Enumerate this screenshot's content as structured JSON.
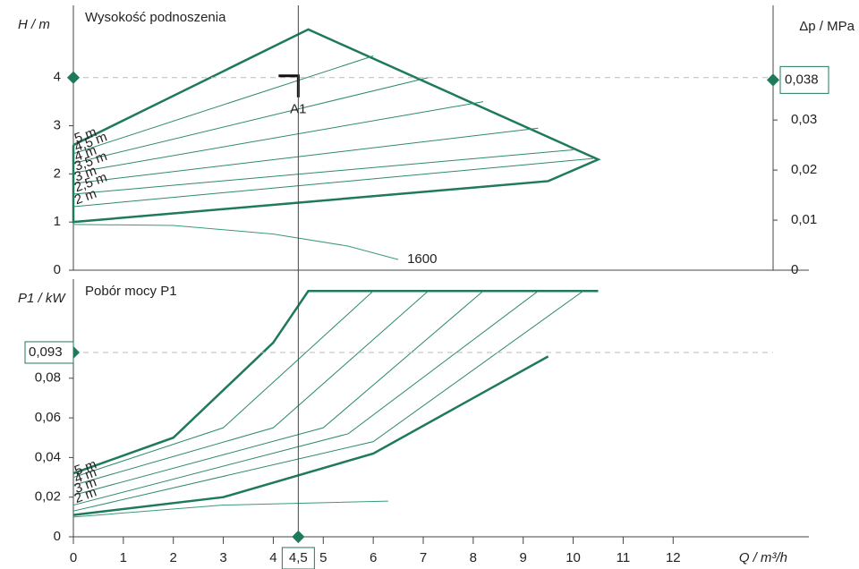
{
  "chart_data": [
    {
      "type": "line",
      "title": "Wysokość podnoszenia",
      "ylabel": "H / m",
      "y2label": "Δp / MPa",
      "xlim": [
        0,
        14
      ],
      "ylim": [
        0,
        5.5
      ],
      "yticks": [
        0,
        1,
        2,
        3,
        4
      ],
      "y2lim": [
        0,
        0.0529
      ],
      "y2ticks": [
        0,
        {
          "value": 0.01,
          "label": "0,01"
        },
        {
          "value": 0.02,
          "label": "0,02"
        },
        {
          "value": 0.03,
          "label": "0,03"
        }
      ],
      "color": "#1f7a5a",
      "series": [
        {
          "color": "#1f7a5a",
          "width": 2.5,
          "x": [
            0,
            4.7,
            10.5,
            9.5,
            0,
            0
          ],
          "values": [
            2.6,
            5.0,
            2.3,
            1.85,
            1.0,
            2.6
          ]
        },
        {
          "name": "5 m",
          "label": "start",
          "color": "#1f7a5a",
          "width": 1,
          "x": [
            0,
            4.7
          ],
          "values": [
            2.6,
            5.0
          ]
        },
        {
          "name": "4,5 m",
          "label": "start",
          "color": "#2e8a6a",
          "width": 1,
          "x": [
            0,
            6.0
          ],
          "values": [
            2.42,
            4.45
          ]
        },
        {
          "name": "4 m",
          "label": "start",
          "color": "#2e8a6a",
          "width": 1,
          "x": [
            0,
            7.1
          ],
          "values": [
            2.22,
            4.0
          ]
        },
        {
          "name": "3,5 m",
          "label": "start",
          "color": "#2e8a6a",
          "width": 1,
          "x": [
            0,
            8.2
          ],
          "values": [
            2.02,
            3.5
          ]
        },
        {
          "name": "3 m",
          "label": "start",
          "color": "#2e8a6a",
          "width": 1,
          "x": [
            0,
            9.3
          ],
          "values": [
            1.8,
            2.95
          ]
        },
        {
          "name": "2,5 m",
          "label": "start",
          "color": "#2e8a6a",
          "width": 1,
          "x": [
            0,
            10.0
          ],
          "values": [
            1.58,
            2.5
          ]
        },
        {
          "name": "2 m",
          "label": "start",
          "color": "#2e8a6a",
          "width": 1,
          "x": [
            0,
            10.4
          ],
          "values": [
            1.32,
            2.32
          ]
        },
        {
          "name": "1600",
          "label": "end",
          "color": "#3a9a7a",
          "width": 1,
          "x": [
            0,
            2,
            4,
            5.5,
            6.5
          ],
          "values": [
            0.95,
            0.93,
            0.75,
            0.5,
            0.22
          ]
        }
      ],
      "operating_point": {
        "y": 4,
        "y2": {
          "value": 0.038,
          "label": "0,038"
        },
        "label": "A1"
      }
    },
    {
      "type": "line",
      "title": "Pobór mocy P1",
      "ylabel": "P1 / kW",
      "xlim": [
        0,
        14
      ],
      "ylim": [
        0,
        0.13
      ],
      "yticks": [
        0,
        {
          "value": 0.02,
          "label": "0,02"
        },
        {
          "value": 0.04,
          "label": "0,04"
        },
        {
          "value": 0.06,
          "label": "0,06"
        },
        {
          "value": 0.08,
          "label": "0,08"
        }
      ],
      "xlabel": "Q / m³/h",
      "xticks": [
        0,
        1,
        2,
        3,
        4,
        5,
        6,
        7,
        8,
        9,
        10,
        11,
        12
      ],
      "series": [
        {
          "color": "#1f7a5a",
          "width": 2.5,
          "x": [
            0,
            2,
            4,
            4.7,
            10.5
          ],
          "values": [
            0.032,
            0.05,
            0.098,
            0.124,
            0.124
          ]
        },
        {
          "color": "#1f7a5a",
          "width": 2.5,
          "x": [
            0,
            3,
            6,
            9.5
          ],
          "values": [
            0.011,
            0.02,
            0.042,
            0.091
          ]
        },
        {
          "name": "5 m",
          "label": "start",
          "color": "#2e8a6a",
          "width": 1,
          "x": [
            0,
            3,
            6.0
          ],
          "values": [
            0.03,
            0.055,
            0.124
          ]
        },
        {
          "name": "4 m",
          "label": "start",
          "color": "#2e8a6a",
          "width": 1,
          "x": [
            0,
            4,
            7.1
          ],
          "values": [
            0.026,
            0.055,
            0.124
          ]
        },
        {
          "name": "3 m",
          "label": "start",
          "color": "#2e8a6a",
          "width": 1,
          "x": [
            0,
            5,
            8.2
          ],
          "values": [
            0.021,
            0.055,
            0.124
          ]
        },
        {
          "name": "2 m",
          "label": "start",
          "color": "#2e8a6a",
          "width": 1,
          "x": [
            0,
            5.5,
            9.3
          ],
          "values": [
            0.016,
            0.052,
            0.124
          ]
        },
        {
          "color": "#2e8a6a",
          "width": 1,
          "x": [
            0,
            6,
            10.2
          ],
          "values": [
            0.013,
            0.048,
            0.124
          ]
        },
        {
          "color": "#3a9a7a",
          "width": 1,
          "x": [
            0,
            3,
            6.3
          ],
          "values": [
            0.01,
            0.016,
            0.018
          ]
        }
      ],
      "operating_point": {
        "x": {
          "value": 4.5,
          "label": "4,5"
        },
        "y": {
          "value": 0.093,
          "label": "0,093"
        }
      }
    }
  ]
}
